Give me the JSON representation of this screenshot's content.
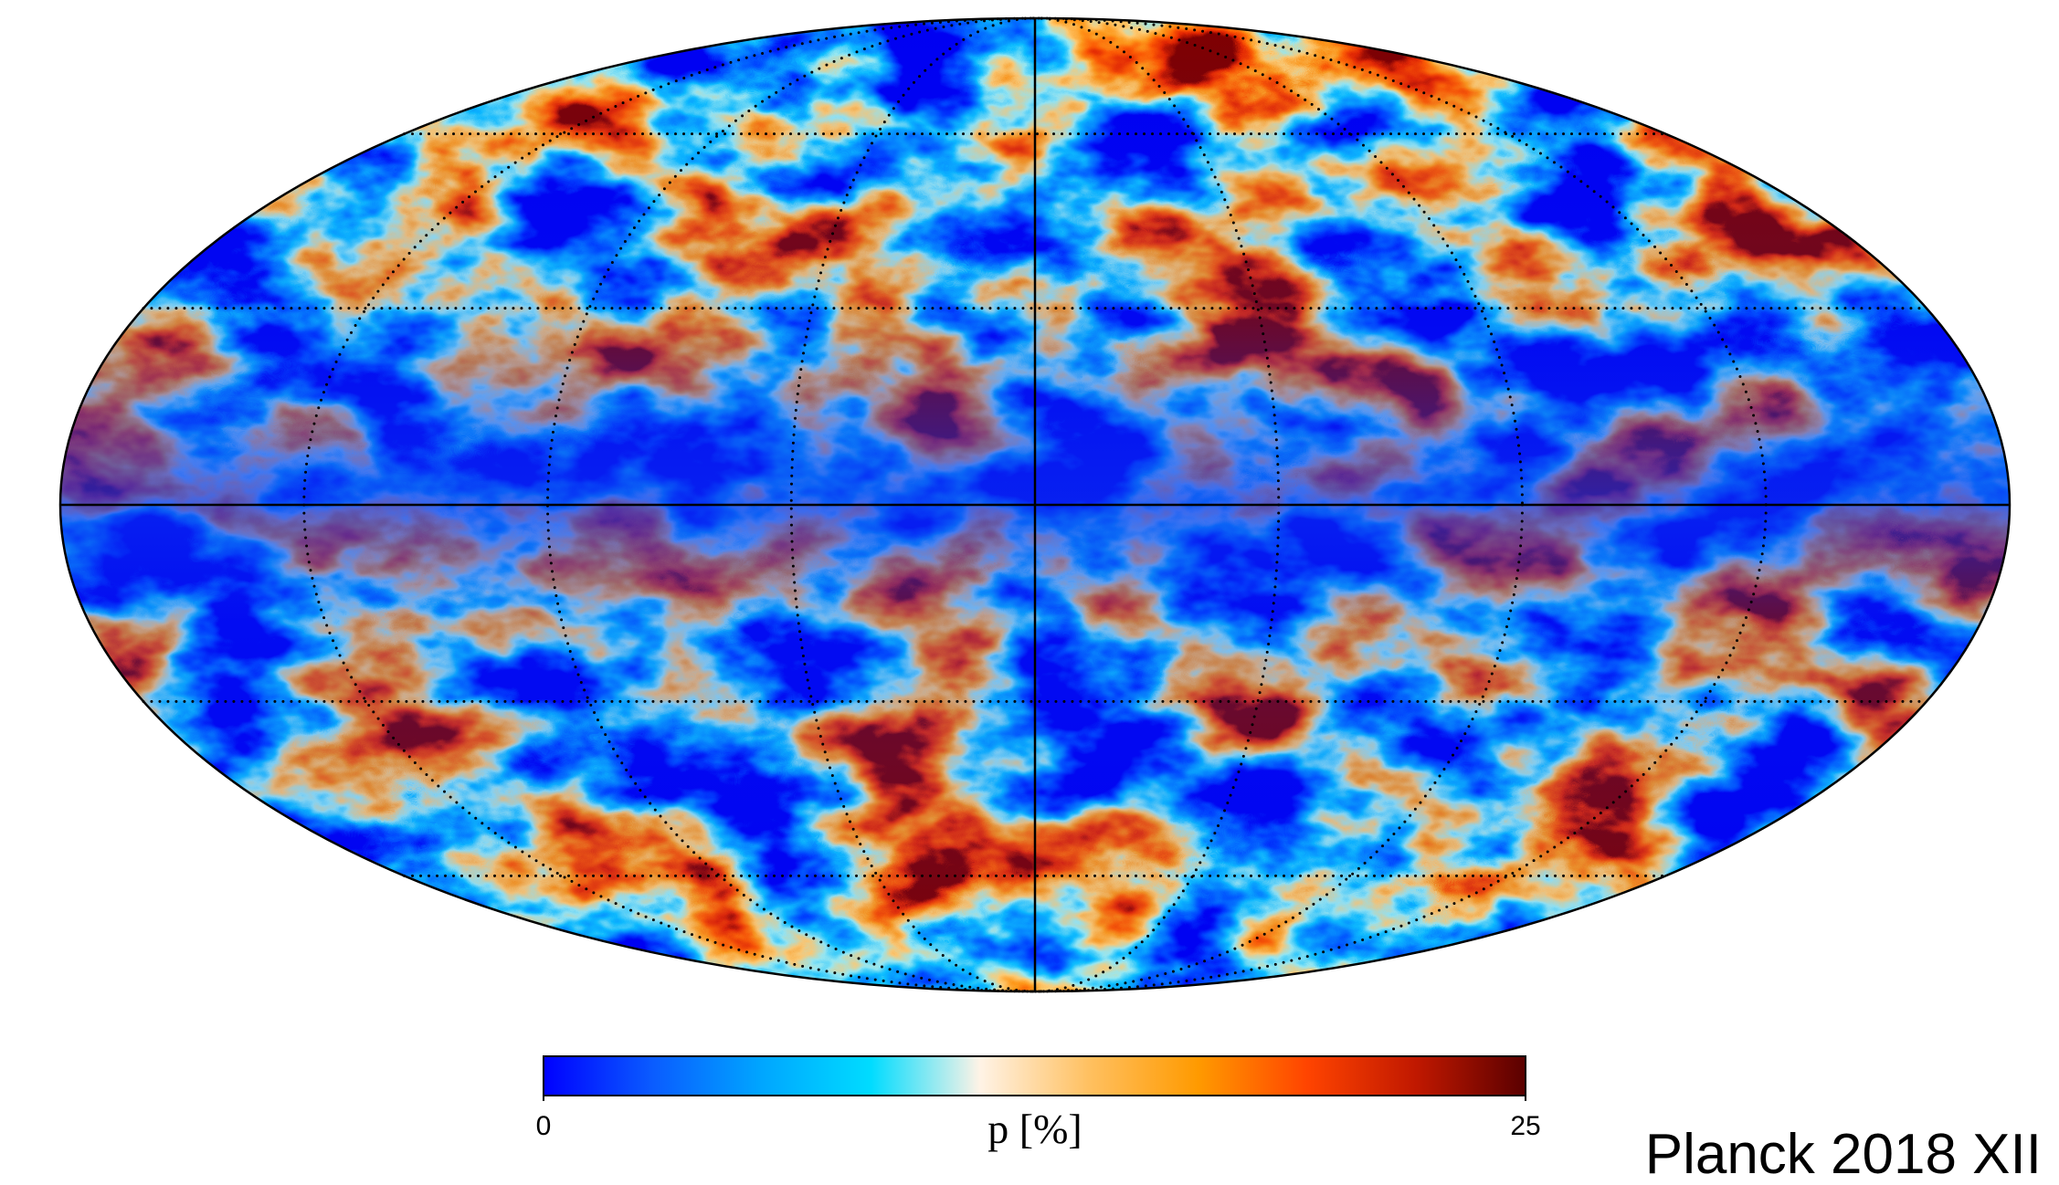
{
  "map": {
    "projection": "mollweide",
    "grid": true
  },
  "colorbar": {
    "label": "p [%]",
    "range": [
      0,
      25
    ],
    "ticks": [
      0,
      25
    ],
    "colormap": [
      "#0000ff",
      "#0a5cff",
      "#00a6ff",
      "#00dcff",
      "#fff3e6",
      "#ffc060",
      "#ff9a00",
      "#ff4400",
      "#c01800",
      "#5a0000"
    ]
  },
  "caption": "Planck 2018 XII"
}
